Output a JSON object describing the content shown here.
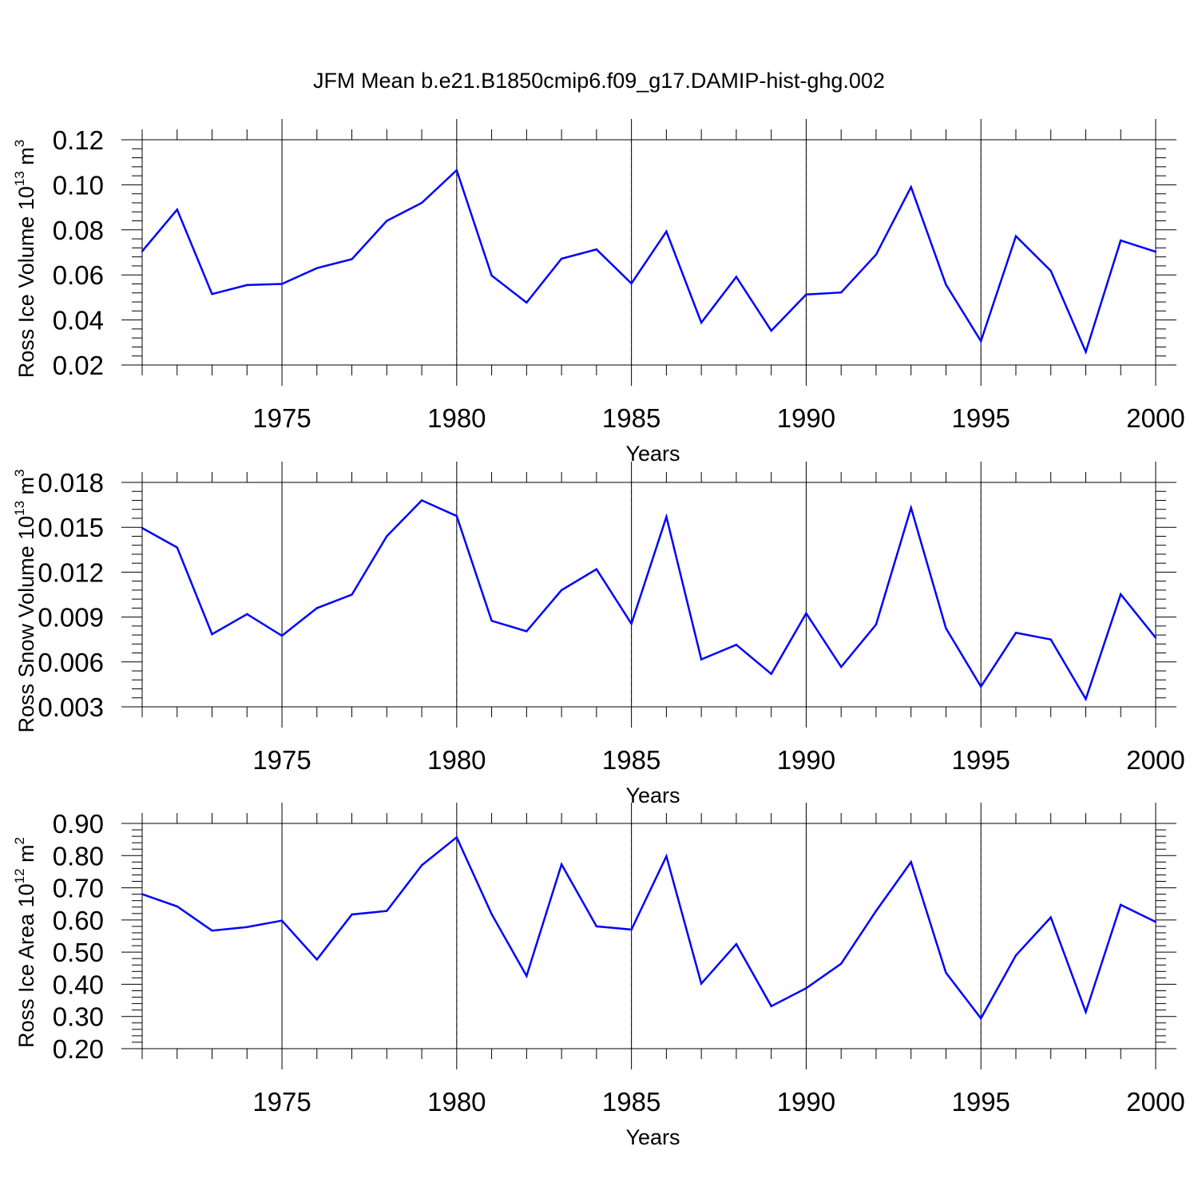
{
  "title": "JFM Mean b.e21.B1850cmip6.f09_g17.DAMIP-hist-ghg.002",
  "colors": {
    "line": "#0000ff",
    "axis": "#000000",
    "grid": "#808080"
  },
  "chart_data": [
    {
      "type": "line",
      "ylabel": {
        "main": "Ross Ice Volume 10",
        "sup": "13",
        "unit": " m",
        "unit_sup": "3"
      },
      "xlabel": "Years",
      "xlim": [
        1971,
        2000
      ],
      "ylim": [
        0.02,
        0.12
      ],
      "x_ticks": [
        "1975",
        "1980",
        "1985",
        "1990",
        "1995",
        "2000"
      ],
      "y_ticks": [
        "0.02",
        "0.04",
        "0.06",
        "0.08",
        "0.10",
        "0.12"
      ],
      "grid": "dashed vertical lines at major x ticks",
      "x": [
        1971,
        1972,
        1973,
        1974,
        1975,
        1976,
        1977,
        1978,
        1979,
        1980,
        1981,
        1982,
        1983,
        1984,
        1985,
        1986,
        1987,
        1988,
        1989,
        1990,
        1991,
        1992,
        1993,
        1994,
        1995,
        1996,
        1997,
        1998,
        1999,
        2000
      ],
      "values": [
        0.0705,
        0.089,
        0.0515,
        0.0555,
        0.056,
        0.063,
        0.067,
        0.084,
        0.092,
        0.1065,
        0.0597,
        0.0477,
        0.0672,
        0.0713,
        0.0562,
        0.0793,
        0.0388,
        0.0591,
        0.0352,
        0.0513,
        0.0522,
        0.069,
        0.099,
        0.0557,
        0.0306,
        0.0772,
        0.0618,
        0.0258,
        0.0753,
        0.0703
      ]
    },
    {
      "type": "line",
      "ylabel": {
        "main": "Ross Snow Volume 10",
        "sup": "13",
        "unit": " m",
        "unit_sup": "3"
      },
      "xlabel": "Years",
      "xlim": [
        1971,
        2000
      ],
      "ylim": [
        0.003,
        0.018
      ],
      "x_ticks": [
        "1975",
        "1980",
        "1985",
        "1990",
        "1995",
        "2000"
      ],
      "y_ticks": [
        "0.003",
        "0.006",
        "0.009",
        "0.012",
        "0.015",
        "0.018"
      ],
      "grid": "dashed vertical lines at major x ticks",
      "x": [
        1971,
        1972,
        1973,
        1974,
        1975,
        1976,
        1977,
        1978,
        1979,
        1980,
        1981,
        1982,
        1983,
        1984,
        1985,
        1986,
        1987,
        1988,
        1989,
        1990,
        1991,
        1992,
        1993,
        1994,
        1995,
        1996,
        1997,
        1998,
        1999,
        2000
      ],
      "values": [
        0.01495,
        0.01365,
        0.00785,
        0.0092,
        0.00775,
        0.0096,
        0.0105,
        0.0144,
        0.0168,
        0.01575,
        0.00875,
        0.00805,
        0.0108,
        0.0122,
        0.00855,
        0.0157,
        0.00617,
        0.00715,
        0.0052,
        0.00925,
        0.00567,
        0.0085,
        0.0163,
        0.00825,
        0.00435,
        0.00795,
        0.0075,
        0.00352,
        0.01052,
        0.00762
      ]
    },
    {
      "type": "line",
      "ylabel": {
        "main": "Ross Ice Area 10",
        "sup": "12",
        "unit": " m",
        "unit_sup": "2"
      },
      "xlabel": "Years",
      "xlim": [
        1971,
        2000
      ],
      "ylim": [
        0.2,
        0.9
      ],
      "x_ticks": [
        "1975",
        "1980",
        "1985",
        "1990",
        "1995",
        "2000"
      ],
      "y_ticks": [
        "0.20",
        "0.30",
        "0.40",
        "0.50",
        "0.60",
        "0.70",
        "0.80",
        "0.90"
      ],
      "grid": "dashed vertical lines at major x ticks",
      "x": [
        1971,
        1972,
        1973,
        1974,
        1975,
        1976,
        1977,
        1978,
        1979,
        1980,
        1981,
        1982,
        1983,
        1984,
        1985,
        1986,
        1987,
        1988,
        1989,
        1990,
        1991,
        1992,
        1993,
        1994,
        1995,
        1996,
        1997,
        1998,
        1999,
        2000
      ],
      "values": [
        0.68,
        0.642,
        0.567,
        0.578,
        0.598,
        0.477,
        0.617,
        0.628,
        0.77,
        0.857,
        0.618,
        0.426,
        0.773,
        0.58,
        0.57,
        0.798,
        0.402,
        0.525,
        0.332,
        0.388,
        0.464,
        0.628,
        0.78,
        0.436,
        0.294,
        0.49,
        0.608,
        0.314,
        0.647,
        0.594
      ]
    }
  ]
}
